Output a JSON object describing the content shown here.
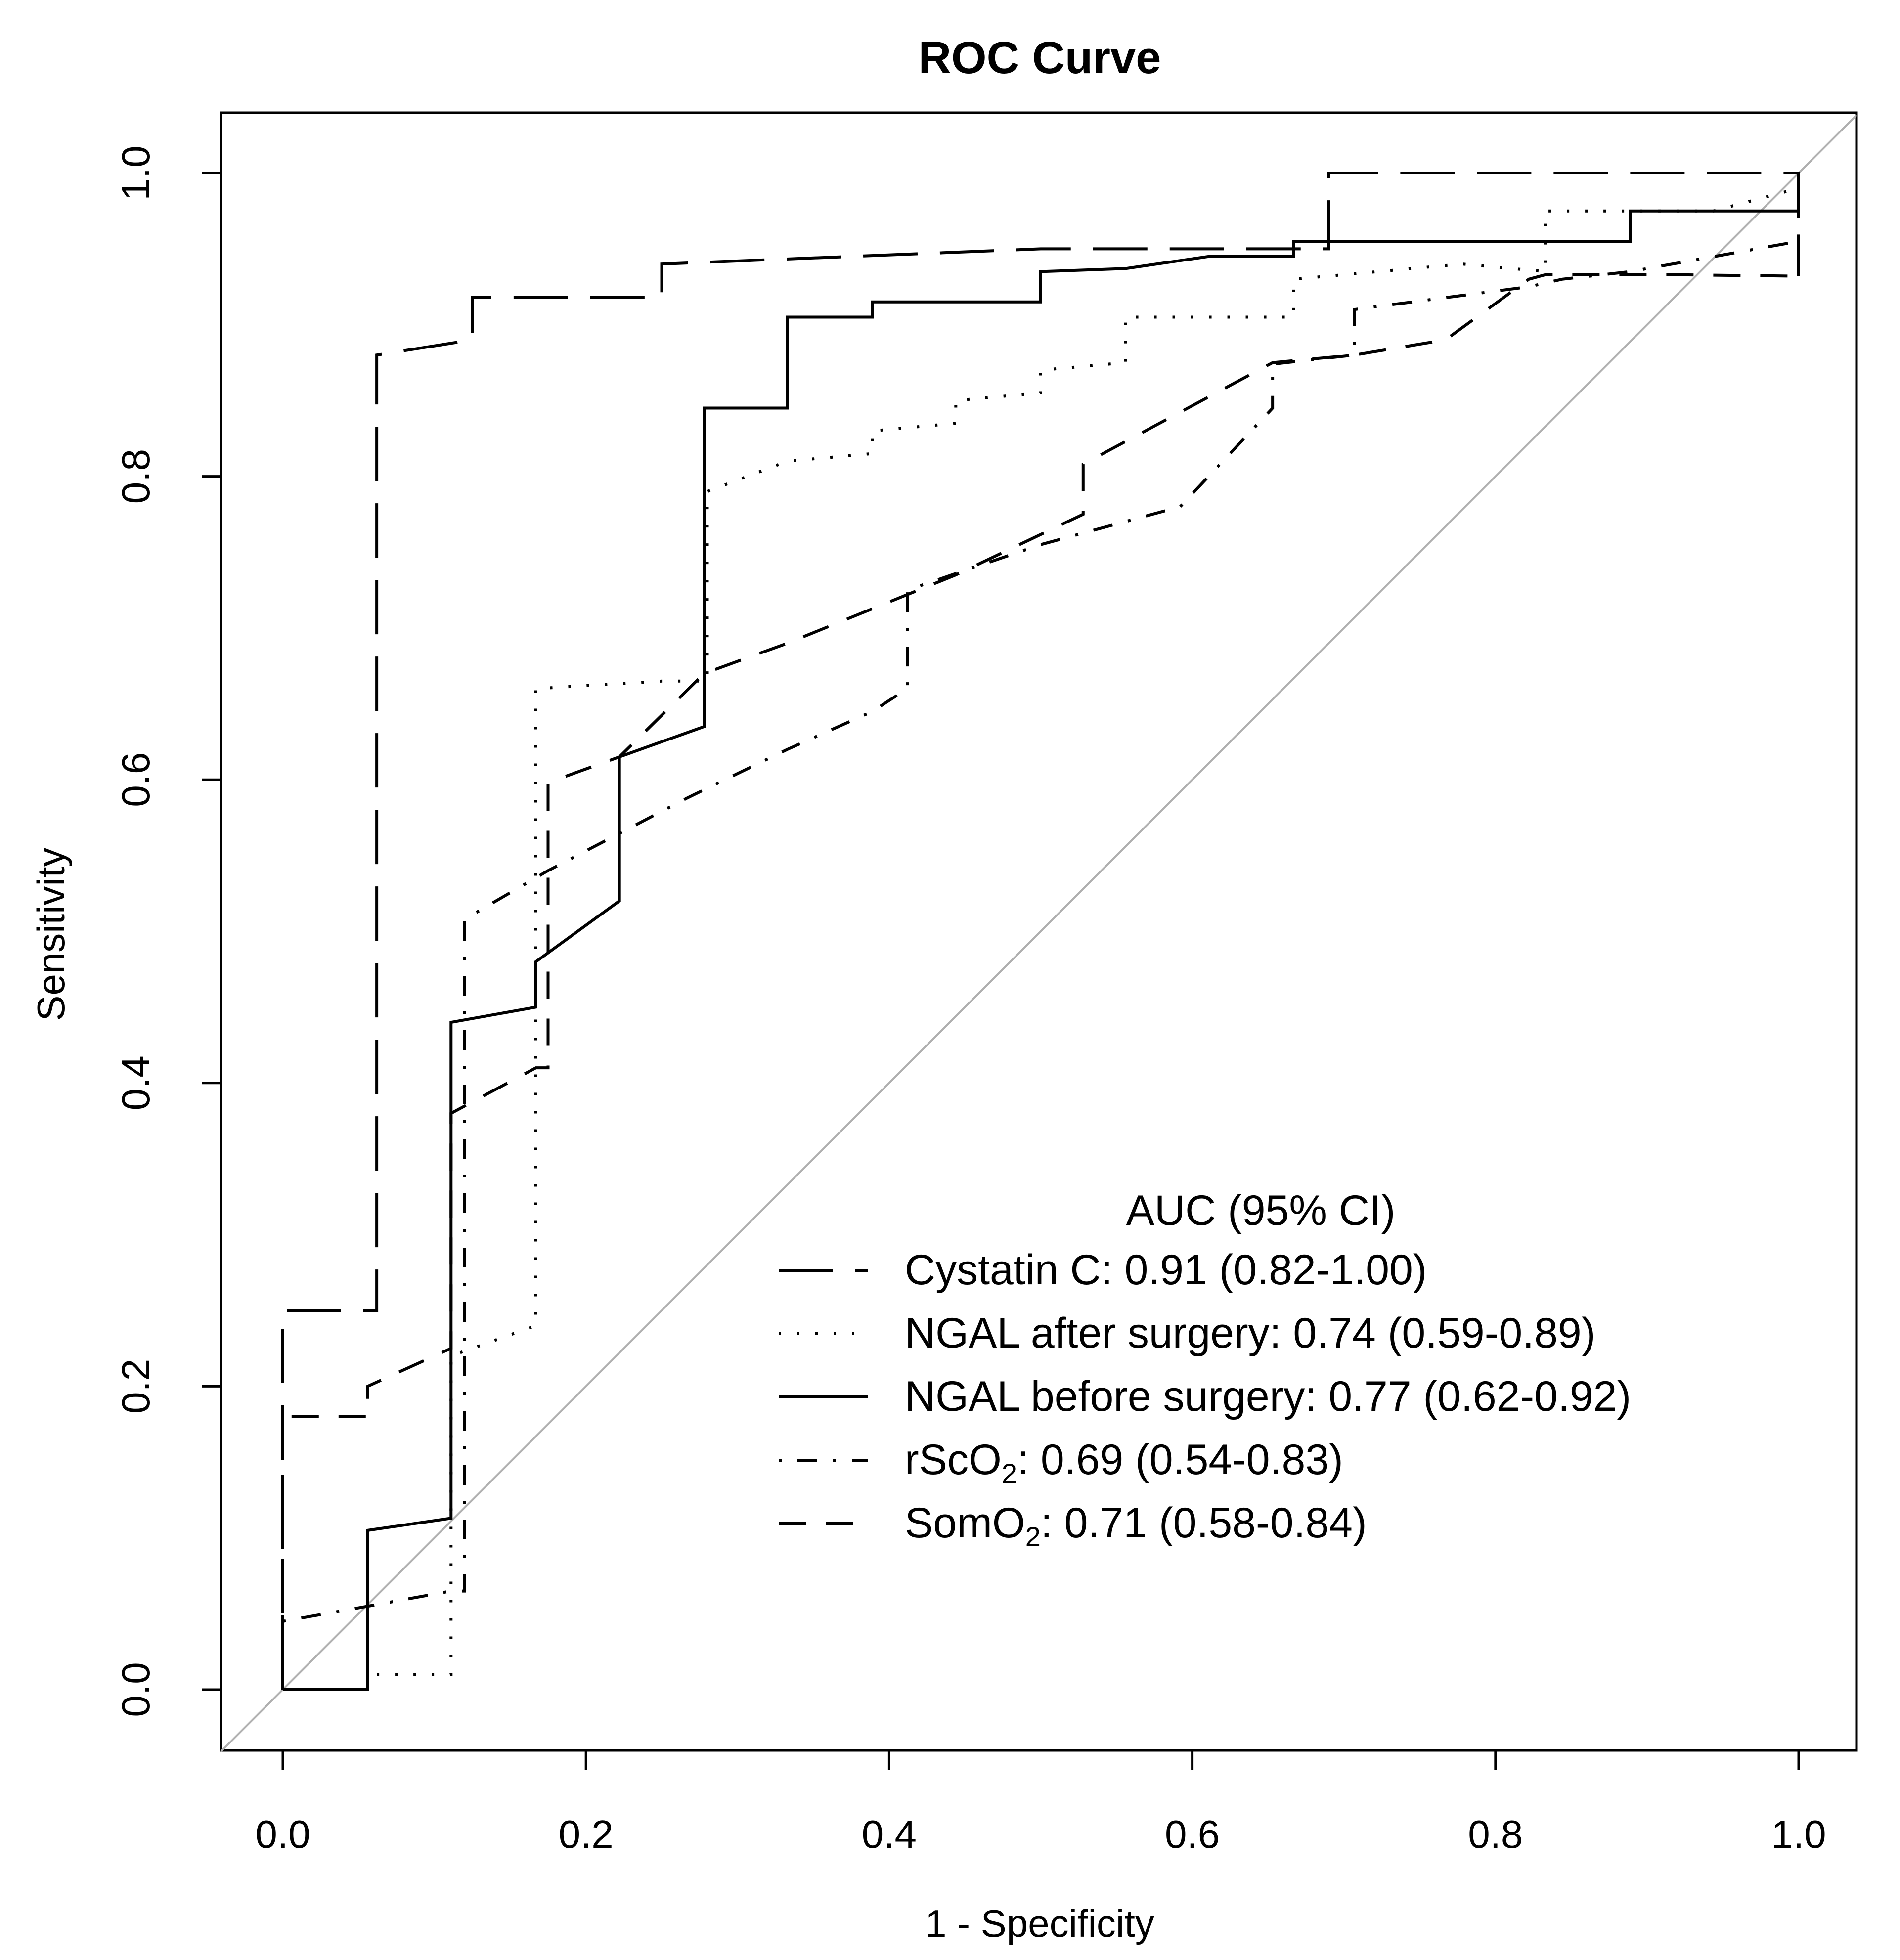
{
  "chart_data": {
    "type": "line",
    "title": "ROC Curve",
    "xlabel": "1 - Specificity",
    "ylabel": "Sensitivity",
    "xlim": [
      0,
      1
    ],
    "ylim": [
      0,
      1
    ],
    "x_ticks": [
      "0.0",
      "0.2",
      "0.4",
      "0.6",
      "0.8",
      "1.0"
    ],
    "y_ticks": [
      "0.0",
      "0.2",
      "0.4",
      "0.6",
      "0.8",
      "1.0"
    ],
    "grid": false,
    "reference_line": {
      "x": [
        0,
        1
      ],
      "y": [
        0,
        1
      ],
      "color": "#b0b0b0"
    },
    "legend": {
      "title": "AUC (95% CI)",
      "position": "bottom-right",
      "entries": [
        {
          "id": "cystatin",
          "prefix": "Cystatin C:",
          "sub": "",
          "suffix": "  0.91 (0.82-1.00)"
        },
        {
          "id": "ngal_after",
          "prefix": "NGAL after surgery",
          "sub": "",
          "suffix": ": 0.74 (0.59-0.89)"
        },
        {
          "id": "ngal_before",
          "prefix": "NGAL before surgery",
          "sub": "",
          "suffix": ": 0.77 (0.62-0.92)"
        },
        {
          "id": "rsco2",
          "prefix": "rScO",
          "sub": "2",
          "suffix": ": 0.69 (0.54-0.83)"
        },
        {
          "id": "somo2",
          "prefix": "SomO",
          "sub": "2",
          "suffix": ": 0.71 (0.58-0.84)"
        }
      ]
    },
    "series": [
      {
        "name": "Cystatin C",
        "auc": "0.91 (0.82-1.00)",
        "dash": "long-dash",
        "x": [
          0,
          0,
          0.062,
          0.062,
          0.125,
          0.125,
          0.25,
          0.25,
          0.5,
          0.69,
          0.69,
          1.0,
          1.0
        ],
        "y": [
          0,
          0.25,
          0.25,
          0.88,
          0.89,
          0.918,
          0.918,
          0.94,
          0.95,
          0.95,
          1.0,
          1.0,
          0.932
        ]
      },
      {
        "name": "NGAL after surgery",
        "auc": "0.74 (0.59-0.89)",
        "dash": "dotted",
        "x": [
          0.062,
          0.111,
          0.111,
          0.167,
          0.167,
          0.25,
          0.28,
          0.28,
          0.333,
          0.389,
          0.389,
          0.444,
          0.444,
          0.5,
          0.5,
          0.556,
          0.556,
          0.667,
          0.667,
          0.778,
          0.833,
          0.833,
          0.944,
          1.0
        ],
        "y": [
          0.01,
          0.01,
          0.22,
          0.24,
          0.66,
          0.665,
          0.665,
          0.79,
          0.81,
          0.815,
          0.83,
          0.835,
          0.85,
          0.855,
          0.87,
          0.875,
          0.905,
          0.905,
          0.93,
          0.94,
          0.935,
          0.975,
          0.975,
          0.99
        ]
      },
      {
        "name": "NGAL before surgery",
        "auc": "0.77 (0.62-0.92)",
        "dash": "solid",
        "x": [
          0,
          0.056,
          0.056,
          0.111,
          0.111,
          0.167,
          0.167,
          0.222,
          0.222,
          0.278,
          0.278,
          0.333,
          0.333,
          0.389,
          0.389,
          0.5,
          0.5,
          0.556,
          0.611,
          0.667,
          0.667,
          0.889,
          0.889,
          1.0,
          1.0
        ],
        "y": [
          0,
          0,
          0.105,
          0.113,
          0.44,
          0.45,
          0.48,
          0.52,
          0.615,
          0.635,
          0.845,
          0.845,
          0.905,
          0.905,
          0.915,
          0.915,
          0.935,
          0.937,
          0.945,
          0.945,
          0.955,
          0.955,
          0.975,
          0.975,
          0.97
        ]
      },
      {
        "name": "rScO2",
        "auc": "0.69 (0.54-0.83)",
        "dash": "dash-dot",
        "x": [
          0,
          0.056,
          0.111,
          0.12,
          0.12,
          0.175,
          0.175,
          0.267,
          0.333,
          0.389,
          0.412,
          0.412,
          0.5,
          0.592,
          0.653,
          0.653,
          0.707,
          0.707,
          0.822,
          0.844,
          0.889,
          1.0
        ],
        "y": [
          0.045,
          0.055,
          0.065,
          0.065,
          0.508,
          0.54,
          0.54,
          0.588,
          0.62,
          0.645,
          0.66,
          0.725,
          0.755,
          0.78,
          0.845,
          0.874,
          0.88,
          0.91,
          0.925,
          0.93,
          0.935,
          0.955
        ]
      },
      {
        "name": "SomO2",
        "auc": "0.71 (0.58-0.84)",
        "dash": "short-dash",
        "x": [
          0,
          0,
          0.056,
          0.056,
          0.111,
          0.111,
          0.167,
          0.175,
          0.175,
          0.222,
          0.278,
          0.333,
          0.444,
          0.528,
          0.528,
          0.653,
          0.707,
          0.767,
          0.822,
          0.833,
          0.917,
          1.0
        ],
        "y": [
          0,
          0.18,
          0.18,
          0.2,
          0.225,
          0.38,
          0.41,
          0.41,
          0.598,
          0.615,
          0.67,
          0.69,
          0.735,
          0.775,
          0.808,
          0.875,
          0.88,
          0.89,
          0.93,
          0.933,
          0.933,
          0.932
        ]
      }
    ]
  }
}
